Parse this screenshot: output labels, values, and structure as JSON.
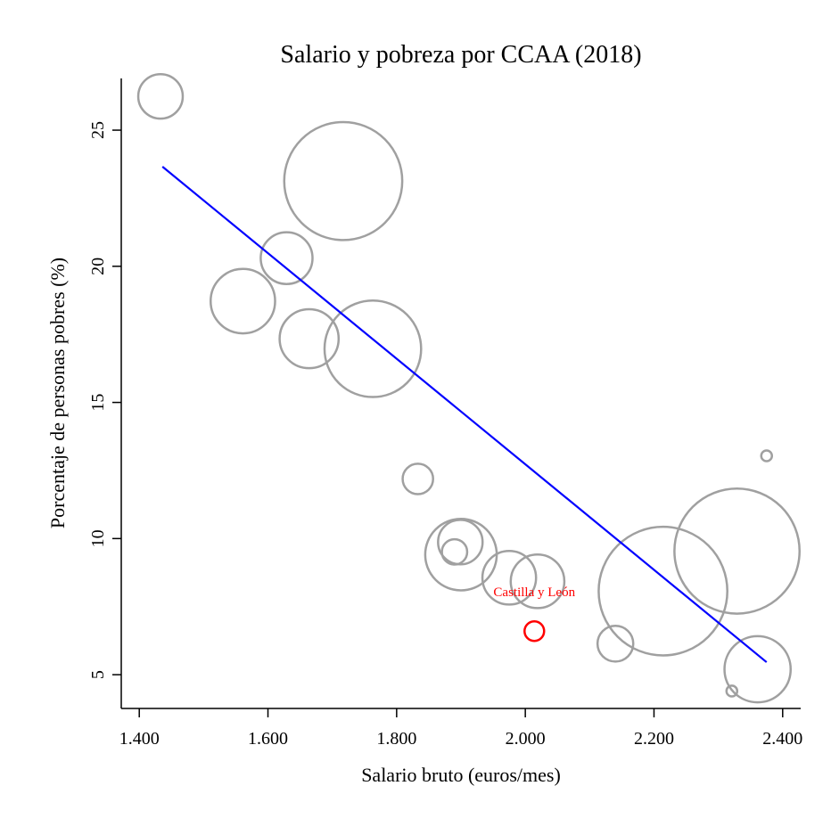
{
  "chart_data": {
    "type": "scatter",
    "title": "Salario y pobreza por CCAA (2018)",
    "xlabel": "Salario bruto (euros/mes)",
    "ylabel": "Porcentaje de personas pobres (%)",
    "xlim": [
      1372,
      2428
    ],
    "ylim": [
      3.76,
      26.9
    ],
    "xticks": [
      1400,
      1600,
      1800,
      2000,
      2200,
      2400
    ],
    "xtick_labels": [
      "1.400",
      "1.600",
      "1.800",
      "2.000",
      "2.200",
      "2.400"
    ],
    "yticks": [
      5,
      10,
      15,
      20,
      25
    ],
    "ytick_labels": [
      "5",
      "10",
      "15",
      "20",
      "25"
    ],
    "grid": false,
    "bubble_color": "#a0a0a0",
    "highlight_color": "#ff0000",
    "fit_color": "#0000ff",
    "points": [
      {
        "x": 1433,
        "y": 26.24,
        "size": 62
      },
      {
        "x": 1717,
        "y": 23.13,
        "size": 436
      },
      {
        "x": 1629,
        "y": 20.3,
        "size": 84
      },
      {
        "x": 1561,
        "y": 18.72,
        "size": 130
      },
      {
        "x": 1664,
        "y": 17.34,
        "size": 109
      },
      {
        "x": 1763,
        "y": 16.97,
        "size": 292
      },
      {
        "x": 1833,
        "y": 12.19,
        "size": 29
      },
      {
        "x": 1899,
        "y": 9.87,
        "size": 62
      },
      {
        "x": 1890,
        "y": 9.51,
        "size": 20
      },
      {
        "x": 1900,
        "y": 9.41,
        "size": 160
      },
      {
        "x": 1975,
        "y": 8.56,
        "size": 90
      },
      {
        "x": 2019,
        "y": 8.43,
        "size": 90
      },
      {
        "x": 2140,
        "y": 6.14,
        "size": 40
      },
      {
        "x": 2214,
        "y": 8.07,
        "size": 518
      },
      {
        "x": 2329,
        "y": 9.54,
        "size": 490
      },
      {
        "x": 2375,
        "y": 13.04,
        "size": 3.6
      },
      {
        "x": 2361,
        "y": 5.2,
        "size": 137
      },
      {
        "x": 2321,
        "y": 4.4,
        "size": 3.6
      }
    ],
    "highlight": {
      "label": "Castilla y León",
      "x": 2014,
      "y": 6.6,
      "size": 12
    },
    "fit_line": {
      "x": [
        1436,
        2375
      ],
      "y": [
        23.66,
        5.46
      ]
    }
  }
}
